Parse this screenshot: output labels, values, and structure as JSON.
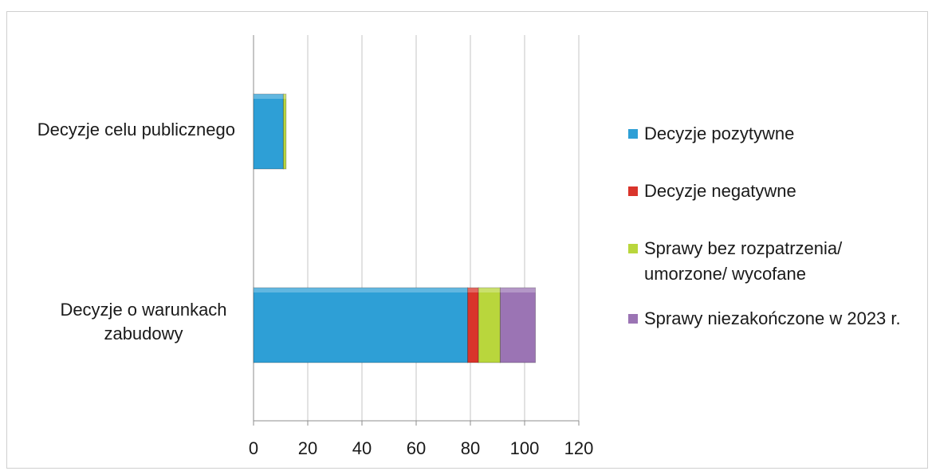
{
  "chart_data": {
    "type": "bar",
    "orientation": "horizontal",
    "stacked": true,
    "categories": [
      "Decyzje celu publicznego",
      "Decyzje o warunkach zabudowy"
    ],
    "series": [
      {
        "name": "Decyzje pozytywne",
        "values": [
          11,
          79
        ],
        "color": "#2e9fd6"
      },
      {
        "name": "Decyzje negatywne",
        "values": [
          0,
          4
        ],
        "color": "#d9342b"
      },
      {
        "name": "Sprawy bez rozpatrzenia/ umorzone/ wycofane",
        "values": [
          1,
          8
        ],
        "color": "#b9d63c"
      },
      {
        "name": "Sprawy niezakończone w 2023 r.",
        "values": [
          0,
          13
        ],
        "color": "#9b74b4"
      }
    ],
    "x_ticks": [
      "0",
      "20",
      "40",
      "60",
      "80",
      "100",
      "120"
    ],
    "xlim": [
      0,
      120
    ],
    "grid": true,
    "legend_position": "right",
    "title": "",
    "xlabel": "",
    "ylabel": ""
  },
  "labels": {
    "cat0": "Decyzje celu publicznego",
    "cat1_line1": "Decyzje o warunkach",
    "cat1_line2": "zabudowy"
  },
  "legend": {
    "item0": "Decyzje pozytywne",
    "item1": "Decyzje negatywne",
    "item2_line1": "Sprawy bez rozpatrzenia/",
    "item2_line2": "umorzone/ wycofane",
    "item3": "Sprawy niezakończone w 2023 r."
  }
}
